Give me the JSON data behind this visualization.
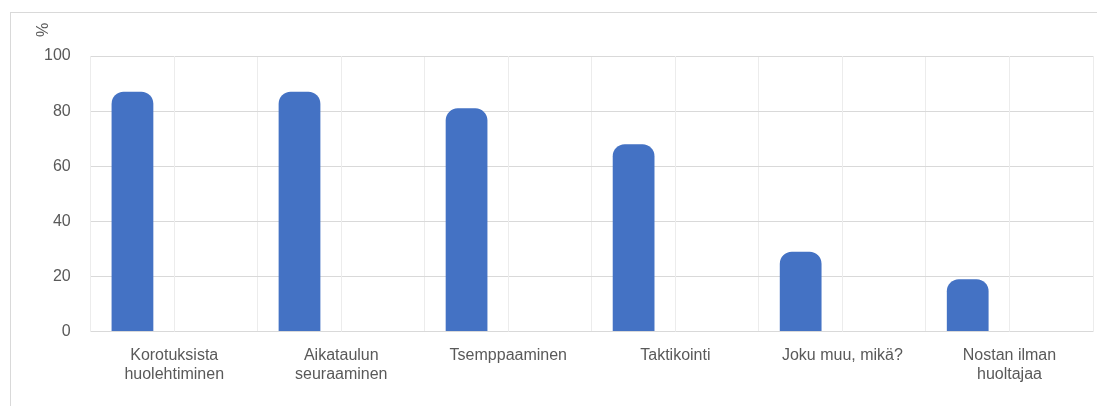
{
  "chart_data": {
    "type": "bar",
    "ylabel": "%",
    "categories": [
      "Korotuksista huolehtiminen",
      "Aikataulun seuraaminen",
      "Tsemppaaminen",
      "Taktikointi",
      "Joku muu, mikä?",
      "Nostan ilman huoltajaa"
    ],
    "values": [
      87,
      87,
      81,
      68,
      29,
      19
    ],
    "color": "#4472c4",
    "ylim": [
      0,
      100
    ],
    "yticks": [
      0,
      20,
      40,
      60,
      80,
      100
    ],
    "grid": true
  }
}
